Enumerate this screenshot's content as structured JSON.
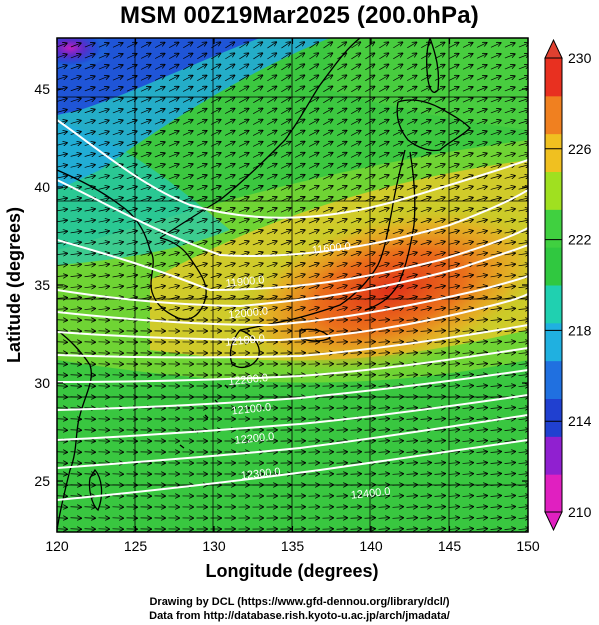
{
  "title": "MSM 00Z19Mar2025 (200.0hPa)",
  "xlabel": "Longitude (degrees)",
  "ylabel": "Latitude  (degrees)",
  "credits": [
    "Drawing by DCL (https://www.gfd-dennou.org/library/dcl/)",
    "Data from http://database.rish.kyoto-u.ac.jp/arch/jmadata/"
  ],
  "chart_data": {
    "type": "heatmap",
    "fields": [
      "temperature (color shading)",
      "geopotential height (white contours)",
      "wind (black arrows)"
    ],
    "xlim": [
      120,
      150
    ],
    "ylim": [
      22.4,
      47.6
    ],
    "xticks": [
      120,
      125,
      130,
      135,
      140,
      145,
      150
    ],
    "yticks": [
      25,
      30,
      35,
      40,
      45
    ],
    "colorbar": {
      "min": 210,
      "max": 230,
      "ticks": [
        210,
        214,
        218,
        222,
        226,
        230
      ],
      "extend": "both",
      "colors": [
        "#e020c0",
        "#9020d0",
        "#2040d0",
        "#2070e0",
        "#20b0e0",
        "#20d0b0",
        "#30c840",
        "#40d040",
        "#a0e020",
        "#f0c020",
        "#f08020",
        "#e83020"
      ]
    },
    "contour_labels": [
      {
        "text": "11600.0",
        "lon": 137.5,
        "lat": 36.7
      },
      {
        "text": "11900.0",
        "lon": 132.0,
        "lat": 35.0
      },
      {
        "text": "12000.0",
        "lon": 132.2,
        "lat": 33.4
      },
      {
        "text": "12100.0",
        "lon": 132.0,
        "lat": 32.0
      },
      {
        "text": "12200.0",
        "lon": 132.2,
        "lat": 30.0
      },
      {
        "text": "12100.0",
        "lon": 132.4,
        "lat": 28.5
      },
      {
        "text": "12200.0",
        "lon": 132.6,
        "lat": 27.0
      },
      {
        "text": "12300.0",
        "lon": 133.0,
        "lat": 25.2
      },
      {
        "text": "12400.0",
        "lon": 140.0,
        "lat": 24.2
      }
    ]
  }
}
